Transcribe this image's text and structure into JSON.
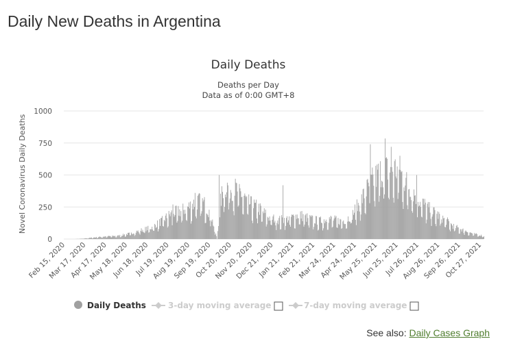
{
  "page": {
    "title": "Daily New Deaths in Argentina"
  },
  "see_also": {
    "prefix": "See also:",
    "link_label": "Daily Cases Graph"
  },
  "colors": {
    "bar": "#a0a0a0",
    "legend_active": "#333333",
    "legend_inactive": "#cccccc",
    "grid": "#e6e6e6"
  },
  "chart_data": {
    "type": "bar",
    "title": "Daily Deaths",
    "subtitle_line1": "Deaths per Day",
    "subtitle_line2": "Data as of 0:00 GMT+8",
    "ylabel": "Novel Coronavirus Daily Deaths",
    "xlabel": "",
    "ylim": [
      0,
      1000
    ],
    "yticks": [
      0,
      250,
      500,
      750,
      1000
    ],
    "grid": true,
    "x_start": "2020-02-15",
    "x_end": "2021-11-01",
    "xtick_labels": [
      "Feb 15, 2020",
      "Mar 17, 2020",
      "Apr 17, 2020",
      "May 18, 2020",
      "Jun 18, 2020",
      "Jul 19, 2020",
      "Aug 19, 2020",
      "Sep 19, 2020",
      "Oct 20, 2020",
      "Nov 20, 2020",
      "Dec 21, 2020",
      "Jan 21, 2021",
      "Feb 21, 2021",
      "Mar 24, 2021",
      "Apr 24, 2021",
      "May 25, 2021",
      "Jun 25, 2021",
      "Jul 26, 2021",
      "Aug 26, 2021",
      "Sep 26, 2021",
      "Oct 27, 2021"
    ],
    "series_name": "Daily Deaths",
    "trend_anchors": [
      [
        0,
        0
      ],
      [
        15,
        0
      ],
      [
        25,
        2
      ],
      [
        45,
        12
      ],
      [
        60,
        20
      ],
      [
        80,
        25
      ],
      [
        100,
        45
      ],
      [
        115,
        70
      ],
      [
        130,
        90
      ],
      [
        145,
        140
      ],
      [
        160,
        200
      ],
      [
        175,
        220
      ],
      [
        185,
        250
      ],
      [
        200,
        300
      ],
      [
        210,
        270
      ],
      [
        218,
        200
      ],
      [
        225,
        60
      ],
      [
        228,
        0
      ],
      [
        232,
        260
      ],
      [
        238,
        420
      ],
      [
        248,
        400
      ],
      [
        260,
        380
      ],
      [
        275,
        280
      ],
      [
        290,
        240
      ],
      [
        305,
        170
      ],
      [
        320,
        150
      ],
      [
        335,
        160
      ],
      [
        350,
        190
      ],
      [
        365,
        160
      ],
      [
        380,
        140
      ],
      [
        395,
        160
      ],
      [
        410,
        140
      ],
      [
        420,
        150
      ],
      [
        430,
        200
      ],
      [
        440,
        280
      ],
      [
        450,
        380
      ],
      [
        460,
        460
      ],
      [
        470,
        520
      ],
      [
        480,
        540
      ],
      [
        490,
        560
      ],
      [
        500,
        520
      ],
      [
        510,
        440
      ],
      [
        520,
        370
      ],
      [
        530,
        300
      ],
      [
        540,
        250
      ],
      [
        550,
        210
      ],
      [
        565,
        160
      ],
      [
        580,
        100
      ],
      [
        595,
        70
      ],
      [
        610,
        40
      ],
      [
        625,
        25
      ]
    ],
    "spikes": [
      [
        162,
        270
      ],
      [
        195,
        360
      ],
      [
        231,
        500
      ],
      [
        326,
        420
      ],
      [
        456,
        740
      ],
      [
        478,
        785
      ],
      [
        487,
        720
      ],
      [
        500,
        650
      ],
      [
        525,
        500
      ]
    ],
    "legend": [
      {
        "label": "Daily Deaths",
        "marker": "circle",
        "active": true
      },
      {
        "label": "3-day moving average",
        "marker": "line-diamond",
        "active": false
      },
      {
        "label": "7-day moving average",
        "marker": "line-diamond",
        "active": false
      }
    ]
  }
}
